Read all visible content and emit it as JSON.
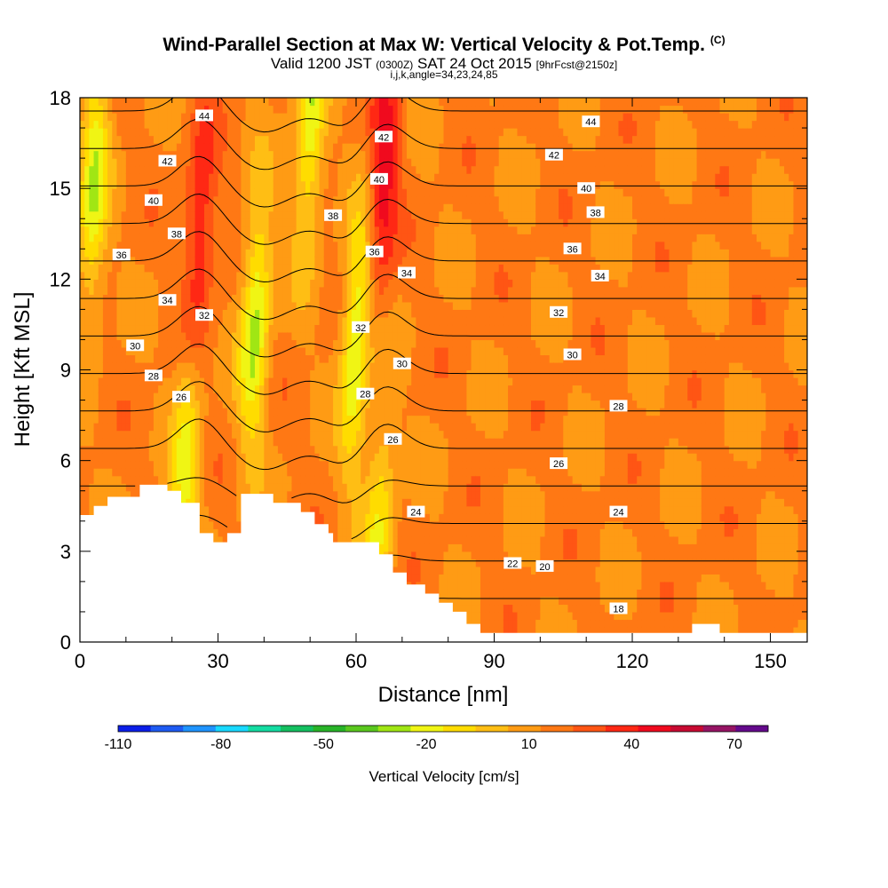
{
  "header": {
    "title": "Wind-Parallel Section at Max W: Vertical Velocity & Pot.Temp.",
    "title_tag": "(C)",
    "valid_prefix": "Valid 1200 JST",
    "valid_utc": "(0300Z)",
    "valid_date": "SAT 24 Oct 2015",
    "forecast": "[9hrFcst@2150z]",
    "indices": "i,j,k,angle=34,23,24,85"
  },
  "chart_data": {
    "type": "heatmap",
    "xlabel": "Distance [nm]",
    "ylabel": "Height [Kft MSL]",
    "xlim": [
      0,
      158
    ],
    "ylim": [
      0,
      18
    ],
    "x_ticks": [
      0,
      30,
      60,
      90,
      120,
      150
    ],
    "y_ticks": [
      0,
      3,
      6,
      9,
      12,
      15,
      18
    ],
    "terrain_profile": [
      [
        0,
        4.2
      ],
      [
        3,
        4.2
      ],
      [
        3,
        4.5
      ],
      [
        6,
        4.5
      ],
      [
        6,
        4.8
      ],
      [
        13,
        4.8
      ],
      [
        13,
        5.2
      ],
      [
        19,
        5.2
      ],
      [
        19,
        5.0
      ],
      [
        22,
        5.0
      ],
      [
        22,
        4.6
      ],
      [
        26,
        4.6
      ],
      [
        26,
        3.6
      ],
      [
        29,
        3.6
      ],
      [
        29,
        3.3
      ],
      [
        32,
        3.3
      ],
      [
        32,
        3.6
      ],
      [
        35,
        3.6
      ],
      [
        35,
        4.9
      ],
      [
        42,
        4.9
      ],
      [
        42,
        4.6
      ],
      [
        48,
        4.6
      ],
      [
        48,
        4.3
      ],
      [
        51,
        4.3
      ],
      [
        51,
        3.9
      ],
      [
        54,
        3.9
      ],
      [
        54,
        3.6
      ],
      [
        55,
        3.6
      ],
      [
        55,
        3.3
      ],
      [
        65,
        3.3
      ],
      [
        65,
        2.9
      ],
      [
        68,
        2.9
      ],
      [
        68,
        2.3
      ],
      [
        71,
        2.3
      ],
      [
        71,
        1.9
      ],
      [
        75,
        1.9
      ],
      [
        75,
        1.6
      ],
      [
        78,
        1.6
      ],
      [
        78,
        1.3
      ],
      [
        81,
        1.3
      ],
      [
        81,
        1.0
      ],
      [
        84,
        1.0
      ],
      [
        84,
        0.6
      ],
      [
        87,
        0.6
      ],
      [
        87,
        0.3
      ],
      [
        133,
        0.3
      ],
      [
        133,
        0.6
      ],
      [
        139,
        0.6
      ],
      [
        139,
        0.3
      ],
      [
        158,
        0.3
      ]
    ],
    "updraft_cores_w_cms": [
      {
        "distance": 26,
        "height": 13.5,
        "w": 40
      },
      {
        "distance": 66,
        "height": 15.5,
        "w": 45
      }
    ],
    "downdraft_cores_w_cms": [
      {
        "distance": 3,
        "height": 15,
        "w": -30
      },
      {
        "distance": 38,
        "height": 10.5,
        "w": -35
      },
      {
        "distance": 50,
        "height": 17,
        "w": -30
      },
      {
        "distance": 60,
        "height": 10,
        "w": -35
      },
      {
        "distance": 23,
        "height": 5.8,
        "w": -25
      },
      {
        "distance": 65,
        "height": 4,
        "w": -20
      }
    ],
    "contour_labels": [
      {
        "text": "44",
        "x": 27,
        "y": 17.4
      },
      {
        "text": "44",
        "x": 111,
        "y": 17.2
      },
      {
        "text": "42",
        "x": 19,
        "y": 15.9
      },
      {
        "text": "42",
        "x": 66,
        "y": 16.7
      },
      {
        "text": "42",
        "x": 103,
        "y": 16.1
      },
      {
        "text": "40",
        "x": 16,
        "y": 14.6
      },
      {
        "text": "40",
        "x": 65,
        "y": 15.3
      },
      {
        "text": "40",
        "x": 110,
        "y": 15.0
      },
      {
        "text": "38",
        "x": 21,
        "y": 13.5
      },
      {
        "text": "38",
        "x": 55,
        "y": 14.1
      },
      {
        "text": "38",
        "x": 112,
        "y": 14.2
      },
      {
        "text": "36",
        "x": 9,
        "y": 12.8
      },
      {
        "text": "36",
        "x": 64,
        "y": 12.9
      },
      {
        "text": "36",
        "x": 107,
        "y": 13.0
      },
      {
        "text": "34",
        "x": 19,
        "y": 11.3
      },
      {
        "text": "34",
        "x": 71,
        "y": 12.2
      },
      {
        "text": "34",
        "x": 113,
        "y": 12.1
      },
      {
        "text": "32",
        "x": 27,
        "y": 10.8
      },
      {
        "text": "32",
        "x": 61,
        "y": 10.4
      },
      {
        "text": "32",
        "x": 104,
        "y": 10.9
      },
      {
        "text": "30",
        "x": 12,
        "y": 9.8
      },
      {
        "text": "30",
        "x": 70,
        "y": 9.2
      },
      {
        "text": "30",
        "x": 107,
        "y": 9.5
      },
      {
        "text": "28",
        "x": 16,
        "y": 8.8
      },
      {
        "text": "28",
        "x": 62,
        "y": 8.2
      },
      {
        "text": "28",
        "x": 117,
        "y": 7.8
      },
      {
        "text": "26",
        "x": 22,
        "y": 8.1
      },
      {
        "text": "26",
        "x": 68,
        "y": 6.7
      },
      {
        "text": "26",
        "x": 104,
        "y": 5.9
      },
      {
        "text": "24",
        "x": 73,
        "y": 4.3
      },
      {
        "text": "24",
        "x": 117,
        "y": 4.3
      },
      {
        "text": "22",
        "x": 94,
        "y": 2.6
      },
      {
        "text": "20",
        "x": 101,
        "y": 2.5
      },
      {
        "text": "18",
        "x": 117,
        "y": 1.1
      }
    ],
    "colorbar": {
      "title": "Vertical Velocity [cm/s]",
      "tick_labels": [
        "-110",
        "-80",
        "-50",
        "-20",
        "10",
        "40",
        "70"
      ],
      "colors": [
        "#0b1ee8",
        "#1e5bf2",
        "#1f94ff",
        "#19d9ff",
        "#14dca2",
        "#14c060",
        "#28b428",
        "#5ac81e",
        "#a0e614",
        "#f0f514",
        "#ffdc00",
        "#ffbe14",
        "#ff9b14",
        "#ff7814",
        "#ff5514",
        "#ff2814",
        "#f00a1e",
        "#c80a32",
        "#961464",
        "#640a8c"
      ]
    }
  }
}
